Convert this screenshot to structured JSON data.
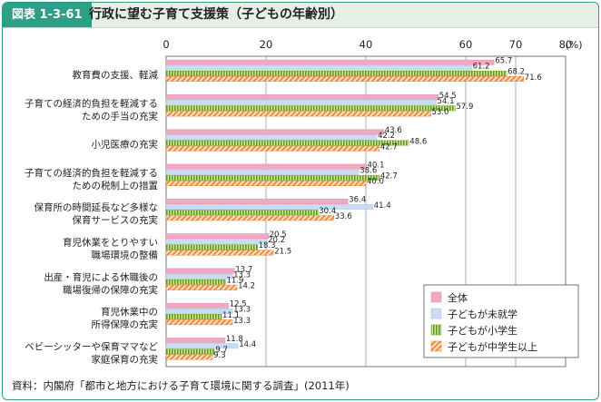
{
  "header": {
    "figure_number": "図表 1-3-61",
    "title": "行政に望む子育て支援策（子どもの年齢別）"
  },
  "source": "資料：内閣府「都市と地方における子育て環境に関する調査」(2011年)",
  "chart_data": {
    "type": "bar",
    "orientation": "horizontal",
    "title": "行政に望む子育て支援策（子どもの年齢別）",
    "unit_label": "(%)",
    "xlim": [
      0,
      80
    ],
    "ticks": [
      0,
      20,
      40,
      60,
      70,
      80
    ],
    "tick_labels": [
      "0",
      "20",
      "40",
      "60",
      "70",
      "80"
    ],
    "grid": true,
    "legend_position": "bottom-right",
    "categories": [
      [
        "教育費の支援、軽減"
      ],
      [
        "子育ての経済的負担を軽減する",
        "ための手当の充実"
      ],
      [
        "小児医療の充実"
      ],
      [
        "子育ての経済的負担を軽減する",
        "ための税制上の措置"
      ],
      [
        "保育所の時間延長など多様な",
        "保育サービスの充実"
      ],
      [
        "育児休業をとりやすい",
        "職場環境の整備"
      ],
      [
        "出産・育児による休職後の",
        "職場復帰の保障の充実"
      ],
      [
        "育児休業中の",
        "所得保障の充実"
      ],
      [
        "ベビーシッターや保育ママなど",
        "家庭保育の充実"
      ]
    ],
    "series": [
      {
        "name": "全体",
        "color": "#f2a7c3",
        "pattern": "solid",
        "values": [
          65.7,
          54.5,
          43.6,
          40.1,
          36.4,
          20.5,
          13.7,
          12.5,
          11.8
        ]
      },
      {
        "name": "子どもが未就学",
        "color": "#c9dcf2",
        "pattern": "solid",
        "values": [
          61.2,
          54.1,
          42.2,
          38.6,
          41.4,
          20.2,
          13.3,
          13.3,
          14.4
        ]
      },
      {
        "name": "子どもが小学生",
        "color": "#8fbf3f",
        "pattern": "vertical-stripes",
        "values": [
          68.2,
          57.9,
          48.6,
          42.7,
          30.4,
          18.3,
          11.9,
          11.1,
          9.7
        ]
      },
      {
        "name": "子どもが中学生以上",
        "color": "#f08a3c",
        "pattern": "diagonal-hatch",
        "values": [
          71.6,
          53.0,
          42.7,
          40.0,
          33.6,
          21.5,
          14.2,
          13.3,
          9.3
        ]
      }
    ],
    "value_labels": [
      [
        "65.7",
        "54.5",
        "43.6",
        "40.1",
        "36.4",
        "20.5",
        "13.7",
        "12.5",
        "11.8"
      ],
      [
        "61.2",
        "54.1",
        "42.2",
        "38.6",
        "41.4",
        "20.2",
        "13.3",
        "13.3",
        "14.4"
      ],
      [
        "68.2",
        "57.9",
        "48.6",
        "42.7",
        "30.4",
        "18.3",
        "11.9",
        "11.1",
        "9.7"
      ],
      [
        "71.6",
        "53.0",
        "42.7",
        "40.0",
        "33.6",
        "21.5",
        "14.2",
        "13.3",
        "9.3"
      ]
    ]
  }
}
